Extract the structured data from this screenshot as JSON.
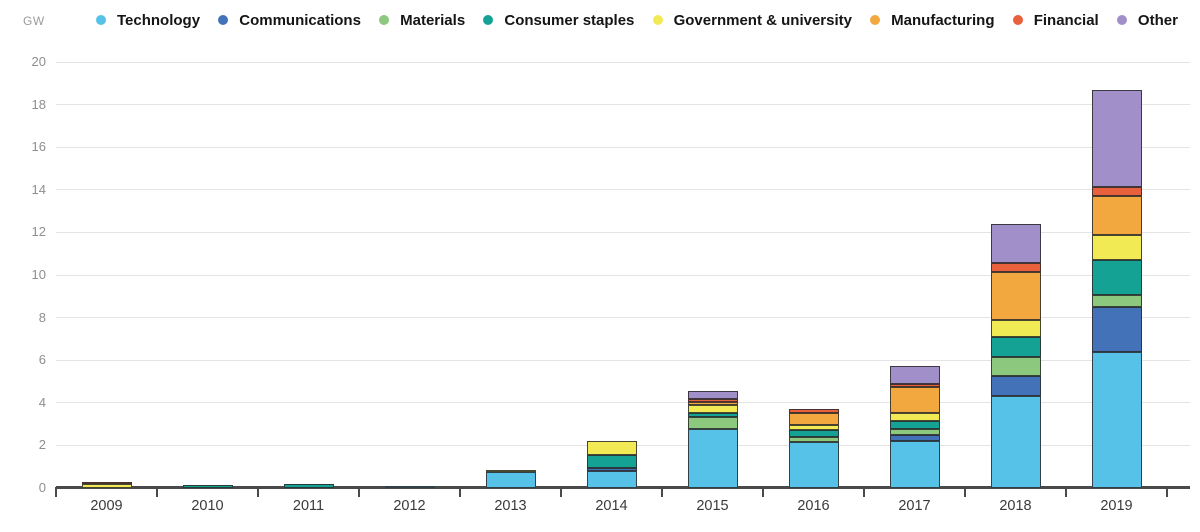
{
  "chart_data": {
    "type": "bar",
    "stacked": true,
    "title": "",
    "unit_label": "GW",
    "xlabel": "",
    "ylabel": "GW",
    "ylim": [
      0,
      20
    ],
    "yticks": [
      0,
      2,
      4,
      6,
      8,
      10,
      12,
      14,
      16,
      18,
      20
    ],
    "grid": "horizontal",
    "legend_position": "top",
    "categories": [
      "2009",
      "2010",
      "2011",
      "2012",
      "2013",
      "2014",
      "2015",
      "2016",
      "2017",
      "2018",
      "2019"
    ],
    "series": [
      {
        "name": "Technology",
        "color": "#56c2e8",
        "values": [
          0,
          0,
          0,
          0.1,
          0.75,
          0.8,
          2.75,
          2.15,
          2.2,
          4.3,
          6.4
        ]
      },
      {
        "name": "Communications",
        "color": "#4472b8",
        "values": [
          0,
          0,
          0,
          0,
          0,
          0.15,
          0,
          0,
          0.3,
          0.95,
          2.1
        ]
      },
      {
        "name": "Materials",
        "color": "#8cc87e",
        "values": [
          0,
          0,
          0,
          0,
          0,
          0,
          0.6,
          0.25,
          0.25,
          0.9,
          0.55
        ]
      },
      {
        "name": "Consumer staples",
        "color": "#14a295",
        "values": [
          0,
          0.15,
          0.2,
          0,
          0,
          0.6,
          0.15,
          0.3,
          0.4,
          0.95,
          1.65
        ]
      },
      {
        "name": "Government & university",
        "color": "#f2ea55",
        "values": [
          0.2,
          0,
          0,
          0,
          0.1,
          0.65,
          0.4,
          0.25,
          0.35,
          0.8,
          1.2
        ]
      },
      {
        "name": "Manufacturing",
        "color": "#f3a73f",
        "values": [
          0,
          0,
          0,
          0,
          0,
          0,
          0.15,
          0.55,
          1.25,
          2.25,
          1.8
        ]
      },
      {
        "name": "Financial",
        "color": "#e8603c",
        "values": [
          0.1,
          0,
          0,
          0,
          0,
          0,
          0.15,
          0.2,
          0.15,
          0.4,
          0.45
        ]
      },
      {
        "name": "Other",
        "color": "#a18fc9",
        "values": [
          0,
          0,
          0,
          0,
          0,
          0,
          0.35,
          0,
          0.85,
          1.85,
          4.55
        ]
      }
    ],
    "totals": [
      0.3,
      0.15,
      0.2,
      0.1,
      0.85,
      2.2,
      4.55,
      3.7,
      5.75,
      12.4,
      18.7
    ]
  }
}
